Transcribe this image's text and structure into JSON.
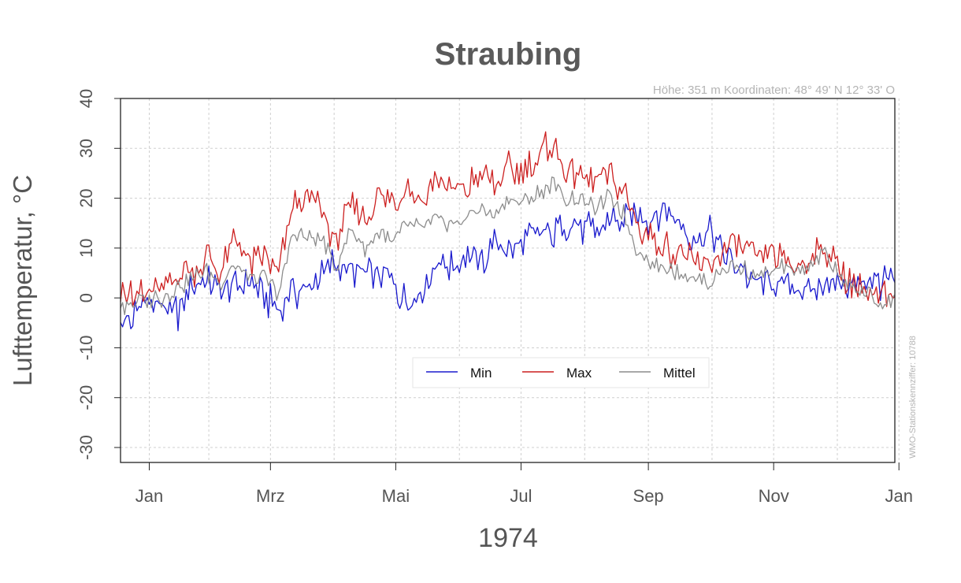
{
  "chart_data": {
    "type": "line",
    "title": "Straubing",
    "subtitle": "Höhe: 351 m   Koordinaten: 48° 49' N  12° 33' O",
    "side_note": "WMO-Stationskennziffer: 10788",
    "xlabel": "1974",
    "ylabel": "Lufttemperatur, °C",
    "ylim": [
      -33,
      40
    ],
    "yticks": [
      "-30",
      "-20",
      "-10",
      "0",
      "10",
      "20",
      "30",
      "40"
    ],
    "xlim_days": [
      -6,
      371
    ],
    "xticks": [
      {
        "day": 8,
        "label": "Jan"
      },
      {
        "day": 67,
        "label": "Mrz"
      },
      {
        "day": 128,
        "label": "Mai"
      },
      {
        "day": 189,
        "label": "Jul"
      },
      {
        "day": 251,
        "label": "Sep"
      },
      {
        "day": 312,
        "label": "Nov"
      },
      {
        "day": 373,
        "label": "Jan"
      }
    ],
    "grid": true,
    "legend_position": "bottom-center",
    "series_anchor_interval_days": 7,
    "series": [
      {
        "name": "Min",
        "color": "#1a1acd",
        "values": [
          -6,
          -3,
          -1,
          -2,
          -3,
          2,
          3,
          1,
          2,
          3,
          0,
          -2,
          1,
          2,
          4,
          8,
          5,
          4,
          5,
          3,
          -1,
          1,
          8,
          6,
          9,
          7,
          11,
          9,
          12,
          13,
          12,
          15,
          14,
          13,
          16,
          15,
          17,
          16,
          18,
          14,
          12,
          13,
          9,
          7,
          3,
          2,
          3,
          2,
          1,
          4,
          3,
          2,
          4,
          3,
          3
        ]
      },
      {
        "name": "Max",
        "color": "#cc1f1f",
        "values": [
          2,
          1,
          0,
          2,
          5,
          6,
          8,
          5,
          12,
          6,
          8,
          5,
          19,
          20,
          18,
          11,
          19,
          16,
          21,
          19,
          22,
          20,
          24,
          21,
          22,
          25,
          23,
          26,
          25,
          28,
          31,
          25,
          25,
          23,
          25,
          21,
          14,
          12,
          10,
          9,
          7,
          6,
          9,
          10,
          8,
          9,
          8,
          7,
          8,
          10,
          5,
          3,
          1,
          0,
          0
        ]
      },
      {
        "name": "Mittel",
        "color": "#8c8c8c",
        "values": [
          -2,
          -1,
          0,
          0,
          2,
          4,
          5,
          3,
          7,
          4,
          4,
          1,
          13,
          12,
          12,
          6,
          14,
          10,
          13,
          11,
          15,
          14,
          16,
          15,
          16,
          18,
          17,
          20,
          19,
          21,
          23,
          20,
          20,
          18,
          20,
          17,
          9,
          7,
          6,
          5,
          4,
          3,
          6,
          6,
          5,
          5,
          6,
          5,
          7,
          9,
          4,
          2,
          1,
          -1,
          -1
        ]
      }
    ]
  }
}
